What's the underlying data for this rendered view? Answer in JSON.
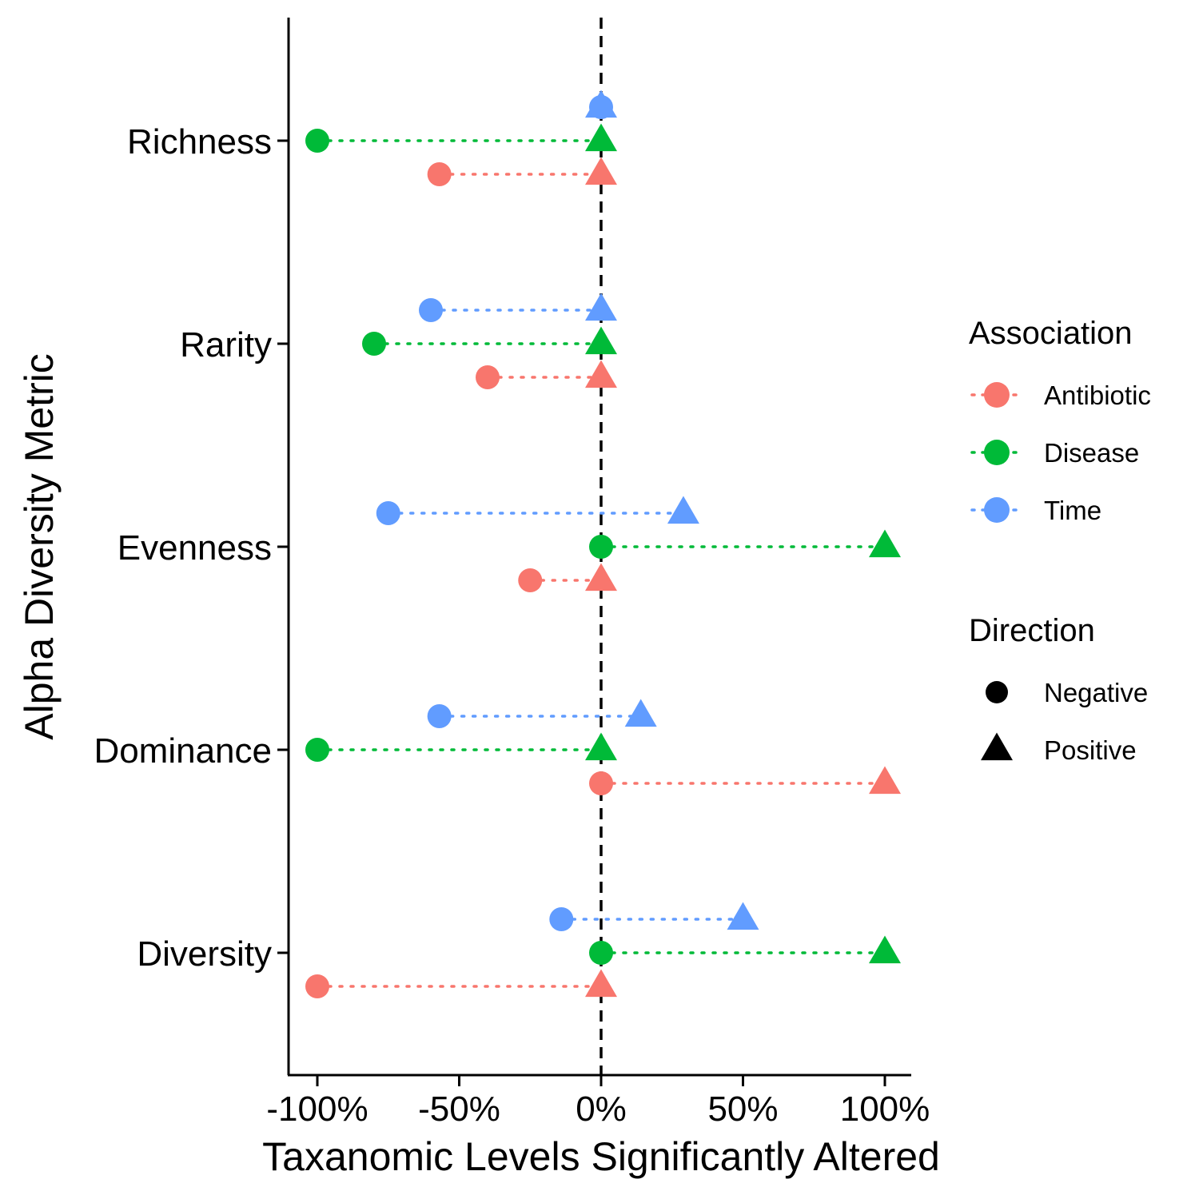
{
  "chart_data": {
    "type": "scatter",
    "xlabel": "Taxanomic Levels Significantly Altered",
    "ylabel": "Alpha Diversity Metric",
    "xlim": [
      -110,
      110
    ],
    "x_ticks": [
      -100,
      -50,
      0,
      50,
      100
    ],
    "x_tick_labels": [
      "-100%",
      "-50%",
      "0%",
      "50%",
      "100%"
    ],
    "x_unit": "%",
    "reference_line": {
      "x": 0,
      "style": "dashed"
    },
    "grid": false,
    "categories": [
      "Richness",
      "Rarity",
      "Evenness",
      "Dominance",
      "Diversity"
    ],
    "series": [
      {
        "name": "Antibiotic",
        "color": "#F8766D",
        "negative": [
          -57,
          -40,
          -25,
          0,
          -100
        ],
        "positive": [
          0,
          0,
          0,
          100,
          0
        ]
      },
      {
        "name": "Disease",
        "color": "#00BA38",
        "negative": [
          -100,
          -80,
          0,
          -100,
          0
        ],
        "positive": [
          0,
          0,
          100,
          0,
          100
        ]
      },
      {
        "name": "Time",
        "color": "#619CFF",
        "negative": [
          0,
          -60,
          -75,
          -57,
          -14
        ],
        "positive": [
          0,
          0,
          29,
          14,
          50
        ]
      }
    ],
    "legend": {
      "placement": "right",
      "association_title": "Association",
      "direction_title": "Direction",
      "direction_items": [
        {
          "label": "Negative",
          "shape": "circle"
        },
        {
          "label": "Positive",
          "shape": "triangle"
        }
      ]
    }
  }
}
